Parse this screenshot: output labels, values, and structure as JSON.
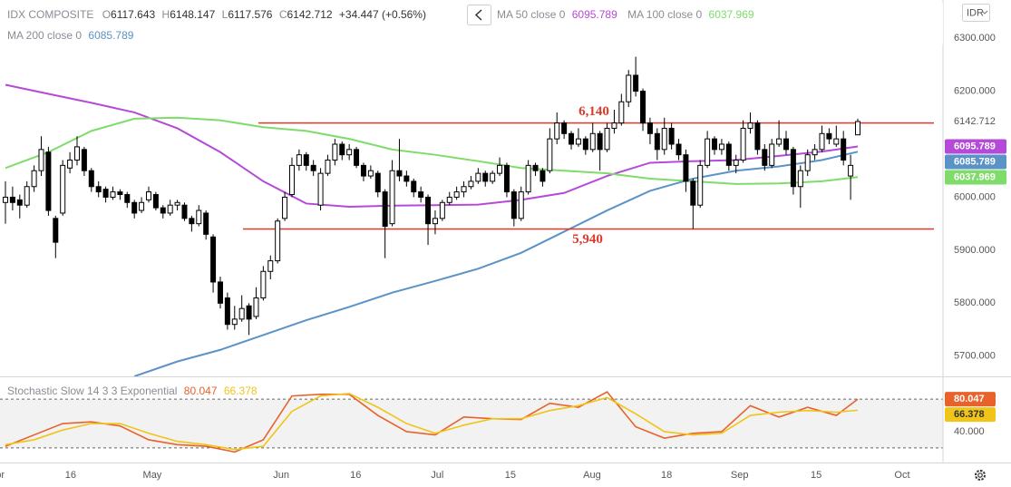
{
  "chart_data": [
    {
      "type": "candlestick",
      "symbol": "IDX COMPOSITE",
      "ohlc_prefixes": [
        "O",
        "H",
        "L",
        "C"
      ],
      "change_text": "+34.447 (+0.56%)",
      "currency": "IDR",
      "up_color": "#ffffff",
      "down_color": "#000000",
      "outline_color": "#000000",
      "ylim": [
        5662,
        6372
      ],
      "yticks": [
        {
          "value": 5700,
          "label": "5700.000"
        },
        {
          "value": 5800,
          "label": "5800.000"
        },
        {
          "value": 5900,
          "label": "5900.000"
        },
        {
          "value": 6000,
          "label": "6000.000"
        },
        {
          "value": 6100,
          "label": "6100.000"
        },
        {
          "value": 6200,
          "label": "6200.000"
        },
        {
          "value": 6300,
          "label": "6300.000"
        }
      ],
      "xlim": [
        -0.76,
        130.9
      ],
      "xticks": [
        {
          "value": -1.2,
          "label": "Apr"
        },
        {
          "value": 9.1,
          "label": "16"
        },
        {
          "value": 20.5,
          "label": "May"
        },
        {
          "value": 38.5,
          "label": "Jun"
        },
        {
          "value": 48.9,
          "label": "16"
        },
        {
          "value": 60.3,
          "label": "Jul"
        },
        {
          "value": 70.5,
          "label": "15"
        },
        {
          "value": 81.9,
          "label": "Aug"
        },
        {
          "value": 92.3,
          "label": "18"
        },
        {
          "value": 102.5,
          "label": "Sep"
        },
        {
          "value": 113.2,
          "label": "15"
        },
        {
          "value": 125.2,
          "label": "Oct"
        }
      ],
      "ohlc": [
        [
          5990,
          6030,
          5950,
          6000
        ],
        [
          6000,
          6020,
          5975,
          5990
        ],
        [
          5995,
          6005,
          5960,
          5985
        ],
        [
          5985,
          6030,
          5980,
          6020
        ],
        [
          6020,
          6060,
          6010,
          6050
        ],
        [
          6050,
          6115,
          6040,
          6090
        ],
        [
          6085,
          6095,
          5965,
          5975
        ],
        [
          5960,
          5965,
          5885,
          5915
        ],
        [
          5970,
          6070,
          5965,
          6060
        ],
        [
          6055,
          6085,
          6045,
          6070
        ],
        [
          6070,
          6115,
          6060,
          6095
        ],
        [
          6090,
          6095,
          6040,
          6050
        ],
        [
          6050,
          6055,
          6010,
          6020
        ],
        [
          6020,
          6030,
          6000,
          6010
        ],
        [
          6015,
          6020,
          5990,
          6000
        ],
        [
          6000,
          6020,
          5995,
          6010
        ],
        [
          6010,
          6015,
          5995,
          6005
        ],
        [
          6005,
          6010,
          5980,
          5990
        ],
        [
          5990,
          5995,
          5960,
          5970
        ],
        [
          5975,
          6000,
          5970,
          5990
        ],
        [
          5995,
          6020,
          5990,
          6010
        ],
        [
          6005,
          6010,
          5975,
          5980
        ],
        [
          5980,
          5985,
          5960,
          5970
        ],
        [
          5970,
          5995,
          5965,
          5985
        ],
        [
          5985,
          5995,
          5975,
          5990
        ],
        [
          5985,
          5990,
          5955,
          5960
        ],
        [
          5960,
          5965,
          5935,
          5950
        ],
        [
          5950,
          5985,
          5945,
          5975
        ],
        [
          5970,
          5975,
          5920,
          5930
        ],
        [
          5925,
          5930,
          5820,
          5840
        ],
        [
          5840,
          5850,
          5790,
          5800
        ],
        [
          5810,
          5820,
          5750,
          5760
        ],
        [
          5760,
          5795,
          5750,
          5770
        ],
        [
          5770,
          5815,
          5765,
          5790
        ],
        [
          5795,
          5800,
          5740,
          5770
        ],
        [
          5775,
          5830,
          5770,
          5810
        ],
        [
          5810,
          5870,
          5805,
          5860
        ],
        [
          5860,
          5890,
          5845,
          5880
        ],
        [
          5880,
          5960,
          5875,
          5955
        ],
        [
          5960,
          6010,
          5955,
          6000
        ],
        [
          6005,
          6075,
          6000,
          6060
        ],
        [
          6060,
          6090,
          6050,
          6080
        ],
        [
          6080,
          6085,
          6050,
          6060
        ],
        [
          6060,
          6070,
          6040,
          6050
        ],
        [
          5985,
          6055,
          5975,
          6045
        ],
        [
          6045,
          6080,
          6040,
          6070
        ],
        [
          6070,
          6110,
          6060,
          6100
        ],
        [
          6100,
          6105,
          6070,
          6080
        ],
        [
          6080,
          6100,
          6070,
          6090
        ],
        [
          6090,
          6095,
          6055,
          6060
        ],
        [
          6060,
          6065,
          6030,
          6040
        ],
        [
          6040,
          6060,
          6035,
          6050
        ],
        [
          6045,
          6050,
          6000,
          6010
        ],
        [
          6010,
          6015,
          5885,
          5945
        ],
        [
          5950,
          6070,
          5945,
          6050
        ],
        [
          6050,
          6110,
          6030,
          6040
        ],
        [
          6040,
          6050,
          6020,
          6030
        ],
        [
          6030,
          6035,
          6000,
          6010
        ],
        [
          6010,
          6020,
          5990,
          6000
        ],
        [
          6000,
          6005,
          5910,
          5950
        ],
        [
          5950,
          5975,
          5930,
          5960
        ],
        [
          5960,
          5995,
          5955,
          5990
        ],
        [
          5990,
          6010,
          5985,
          6000
        ],
        [
          6000,
          6020,
          5995,
          6010
        ],
        [
          6010,
          6030,
          6000,
          6020
        ],
        [
          6020,
          6040,
          6015,
          6030
        ],
        [
          6030,
          6055,
          6025,
          6045
        ],
        [
          6045,
          6050,
          6020,
          6030
        ],
        [
          6030,
          6050,
          6025,
          6045
        ],
        [
          6045,
          6075,
          6040,
          6060
        ],
        [
          6060,
          6065,
          6000,
          6010
        ],
        [
          6010,
          6015,
          5945,
          5960
        ],
        [
          5960,
          6020,
          5955,
          6010
        ],
        [
          6010,
          6070,
          6005,
          6060
        ],
        [
          6060,
          6065,
          6040,
          6050
        ],
        [
          6050,
          6055,
          6020,
          6030
        ],
        [
          6050,
          6130,
          6045,
          6110
        ],
        [
          6110,
          6160,
          6100,
          6140
        ],
        [
          6140,
          6145,
          6110,
          6120
        ],
        [
          6120,
          6125,
          6090,
          6100
        ],
        [
          6100,
          6130,
          6095,
          6110
        ],
        [
          6110,
          6115,
          6080,
          6090
        ],
        [
          6090,
          6140,
          6085,
          6120
        ],
        [
          6120,
          6125,
          6050,
          6090
        ],
        [
          6090,
          6140,
          6085,
          6130
        ],
        [
          6130,
          6165,
          6120,
          6140
        ],
        [
          6140,
          6195,
          6135,
          6180
        ],
        [
          6180,
          6240,
          6170,
          6230
        ],
        [
          6230,
          6265,
          6190,
          6200
        ],
        [
          6200,
          6205,
          6125,
          6140
        ],
        [
          6140,
          6150,
          6100,
          6120
        ],
        [
          6120,
          6130,
          6070,
          6090
        ],
        [
          6090,
          6150,
          6080,
          6130
        ],
        [
          6130,
          6140,
          6090,
          6100
        ],
        [
          6100,
          6110,
          6070,
          6080
        ],
        [
          6080,
          6090,
          6010,
          6030
        ],
        [
          6030,
          6035,
          5940,
          5985
        ],
        [
          5985,
          6070,
          5980,
          6060
        ],
        [
          6060,
          6125,
          6055,
          6110
        ],
        [
          6110,
          6115,
          6080,
          6090
        ],
        [
          6090,
          6110,
          6080,
          6100
        ],
        [
          6100,
          6105,
          6050,
          6060
        ],
        [
          6060,
          6080,
          6045,
          6070
        ],
        [
          6070,
          6145,
          6065,
          6130
        ],
        [
          6130,
          6160,
          6120,
          6140
        ],
        [
          6140,
          6145,
          6080,
          6090
        ],
        [
          6090,
          6100,
          6050,
          6060
        ],
        [
          6060,
          6110,
          6055,
          6100
        ],
        [
          6100,
          6145,
          6095,
          6110
        ],
        [
          6110,
          6125,
          6080,
          6090
        ],
        [
          6090,
          6095,
          6005,
          6020
        ],
        [
          6020,
          6060,
          5980,
          6050
        ],
        [
          6050,
          6090,
          6040,
          6080
        ],
        [
          6080,
          6100,
          6070,
          6090
        ],
        [
          6090,
          6135,
          6085,
          6120
        ],
        [
          6120,
          6130,
          6100,
          6110
        ],
        [
          6100,
          6135,
          6095,
          6110
        ],
        [
          6110,
          6125,
          6060,
          6070
        ],
        [
          6040,
          6080,
          5995,
          6060
        ],
        [
          6117.643,
          6148.147,
          6117.576,
          6142.712
        ]
      ],
      "lines": [
        {
          "name": "MA 50 close 0",
          "color": "#b64ad8",
          "x": [
            0,
            6,
            12,
            18,
            24,
            30,
            36,
            42,
            48,
            54,
            60,
            66,
            72,
            78,
            84,
            90,
            96,
            102,
            108,
            114,
            119
          ],
          "values": [
            6212,
            6195,
            6178,
            6160,
            6130,
            6085,
            6030,
            5988,
            5982,
            5984,
            5985,
            5986,
            5995,
            6008,
            6040,
            6065,
            6068,
            6070,
            6078,
            6086,
            6095.789
          ]
        },
        {
          "name": "MA 100 close 0",
          "color": "#7fdc6b",
          "x": [
            0,
            6,
            12,
            18,
            24,
            30,
            36,
            42,
            48,
            54,
            60,
            66,
            72,
            78,
            84,
            90,
            96,
            102,
            108,
            114,
            119
          ],
          "values": [
            6055,
            6085,
            6125,
            6148,
            6150,
            6145,
            6132,
            6125,
            6110,
            6090,
            6080,
            6068,
            6055,
            6050,
            6045,
            6035,
            6030,
            6025,
            6026,
            6030,
            6037.969
          ]
        },
        {
          "name": "MA 200 close 0",
          "color": "#5b93c7",
          "x": [
            18,
            24,
            30,
            36,
            42,
            48,
            54,
            60,
            66,
            72,
            78,
            84,
            90,
            96,
            102,
            108,
            114,
            119
          ],
          "values": [
            5662,
            5690,
            5712,
            5740,
            5768,
            5793,
            5820,
            5842,
            5865,
            5895,
            5935,
            5975,
            6012,
            6035,
            6050,
            6058,
            6070,
            6085.789
          ]
        }
      ],
      "levels": [
        {
          "value": 6140,
          "label": "6,140",
          "color": "#e0392b"
        },
        {
          "value": 5940,
          "label": "5,940",
          "color": "#e0392b"
        }
      ]
    },
    {
      "type": "line",
      "title": "Stochastic Slow 14 3 3 Exponential",
      "ylim": [
        2,
        107
      ],
      "yticks": [
        {
          "value": 40,
          "label": "40.000"
        }
      ],
      "bands": [
        20,
        80
      ],
      "series": [
        {
          "color": "#e8622c",
          "x": [
            0,
            4,
            8,
            12,
            16,
            20,
            24,
            28,
            32,
            36,
            40,
            44,
            48,
            52,
            56,
            60,
            64,
            68,
            72,
            76,
            80,
            84,
            88,
            92,
            96,
            100,
            104,
            108,
            112,
            116,
            119
          ],
          "values": [
            22,
            36,
            50,
            52,
            47,
            30,
            24,
            22,
            15,
            30,
            84,
            86,
            86,
            60,
            40,
            36,
            58,
            56,
            55,
            75,
            70,
            89,
            46,
            32,
            38,
            40,
            72,
            58,
            70,
            60,
            80.047
          ]
        },
        {
          "color": "#f0c419",
          "x": [
            0,
            4,
            8,
            12,
            16,
            20,
            24,
            28,
            32,
            36,
            40,
            44,
            48,
            52,
            56,
            60,
            64,
            68,
            72,
            76,
            80,
            84,
            88,
            92,
            96,
            100,
            104,
            108,
            112,
            116,
            119
          ],
          "values": [
            24,
            30,
            42,
            50,
            50,
            38,
            28,
            24,
            18,
            22,
            65,
            84,
            87,
            70,
            50,
            38,
            48,
            56,
            56,
            66,
            72,
            82,
            62,
            40,
            36,
            38,
            60,
            64,
            66,
            64,
            66.378
          ]
        }
      ]
    }
  ]
}
